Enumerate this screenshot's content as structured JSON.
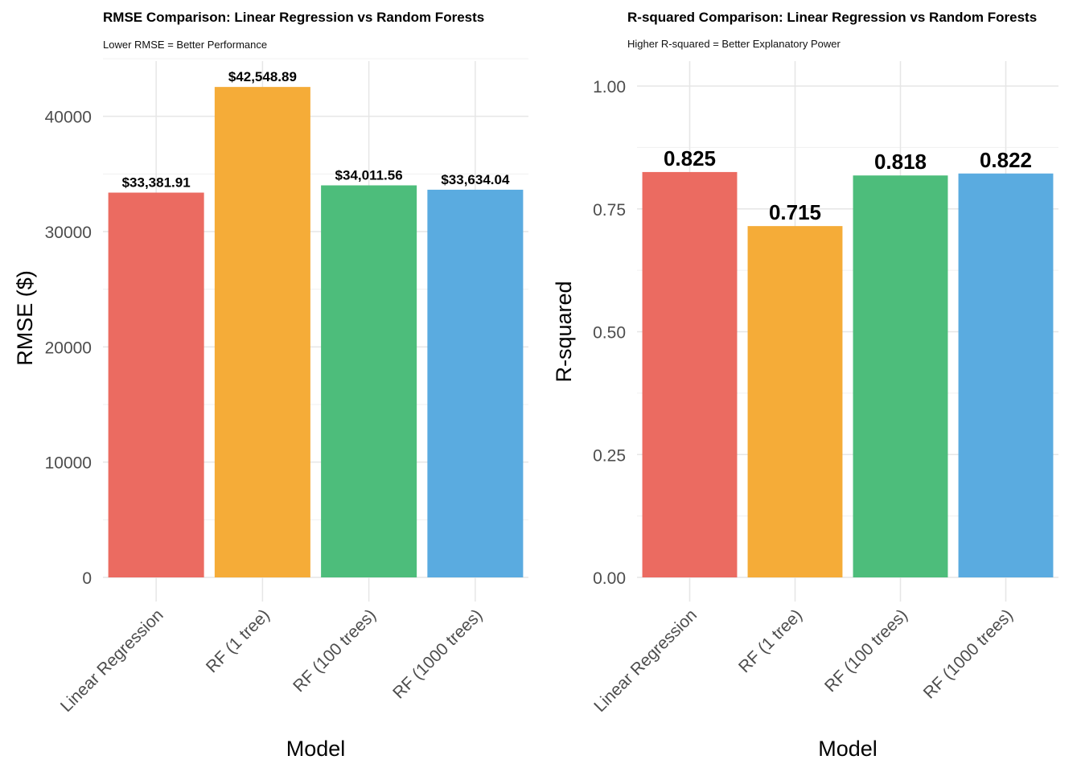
{
  "chart_data": [
    {
      "type": "bar",
      "title": "RMSE Comparison: Linear Regression vs Random Forests",
      "subtitle": "Lower RMSE = Better Performance",
      "xlabel": "Model",
      "ylabel": "RMSE ($)",
      "categories": [
        "Linear Regression",
        "RF (1 tree)",
        "RF (100 trees)",
        "RF (1000 trees)"
      ],
      "values": [
        33381.91,
        42548.89,
        34011.56,
        33634.04
      ],
      "data_labels": [
        "$33,381.91",
        "$42,548.89",
        "$34,011.56",
        "$33,634.04"
      ],
      "colors": [
        "#EB6B61",
        "#F5AC38",
        "#4DBD7B",
        "#5AABE0"
      ],
      "ylim": [
        0,
        45000
      ],
      "yticks": [
        0,
        10000,
        20000,
        30000,
        40000
      ],
      "ytick_labels": [
        "0",
        "10000",
        "20000",
        "30000",
        "40000"
      ],
      "grid": true,
      "legend": "none"
    },
    {
      "type": "bar",
      "title": "R-squared Comparison: Linear Regression vs Random Forests",
      "subtitle": "Higher R-squared = Better Explanatory Power",
      "xlabel": "Model",
      "ylabel": "R-squared",
      "categories": [
        "Linear Regression",
        "RF (1 tree)",
        "RF (100 trees)",
        "RF (1000 trees)"
      ],
      "values": [
        0.825,
        0.715,
        0.818,
        0.822
      ],
      "data_labels": [
        "0.825",
        "0.715",
        "0.818",
        "0.822"
      ],
      "colors": [
        "#EB6B61",
        "#F5AC38",
        "#4DBD7B",
        "#5AABE0"
      ],
      "ylim": [
        0,
        1.0
      ],
      "yticks": [
        0,
        0.25,
        0.5,
        0.75,
        1.0
      ],
      "ytick_labels": [
        "0.00",
        "0.25",
        "0.50",
        "0.75",
        "1.00"
      ],
      "grid": true,
      "legend": "none"
    }
  ]
}
